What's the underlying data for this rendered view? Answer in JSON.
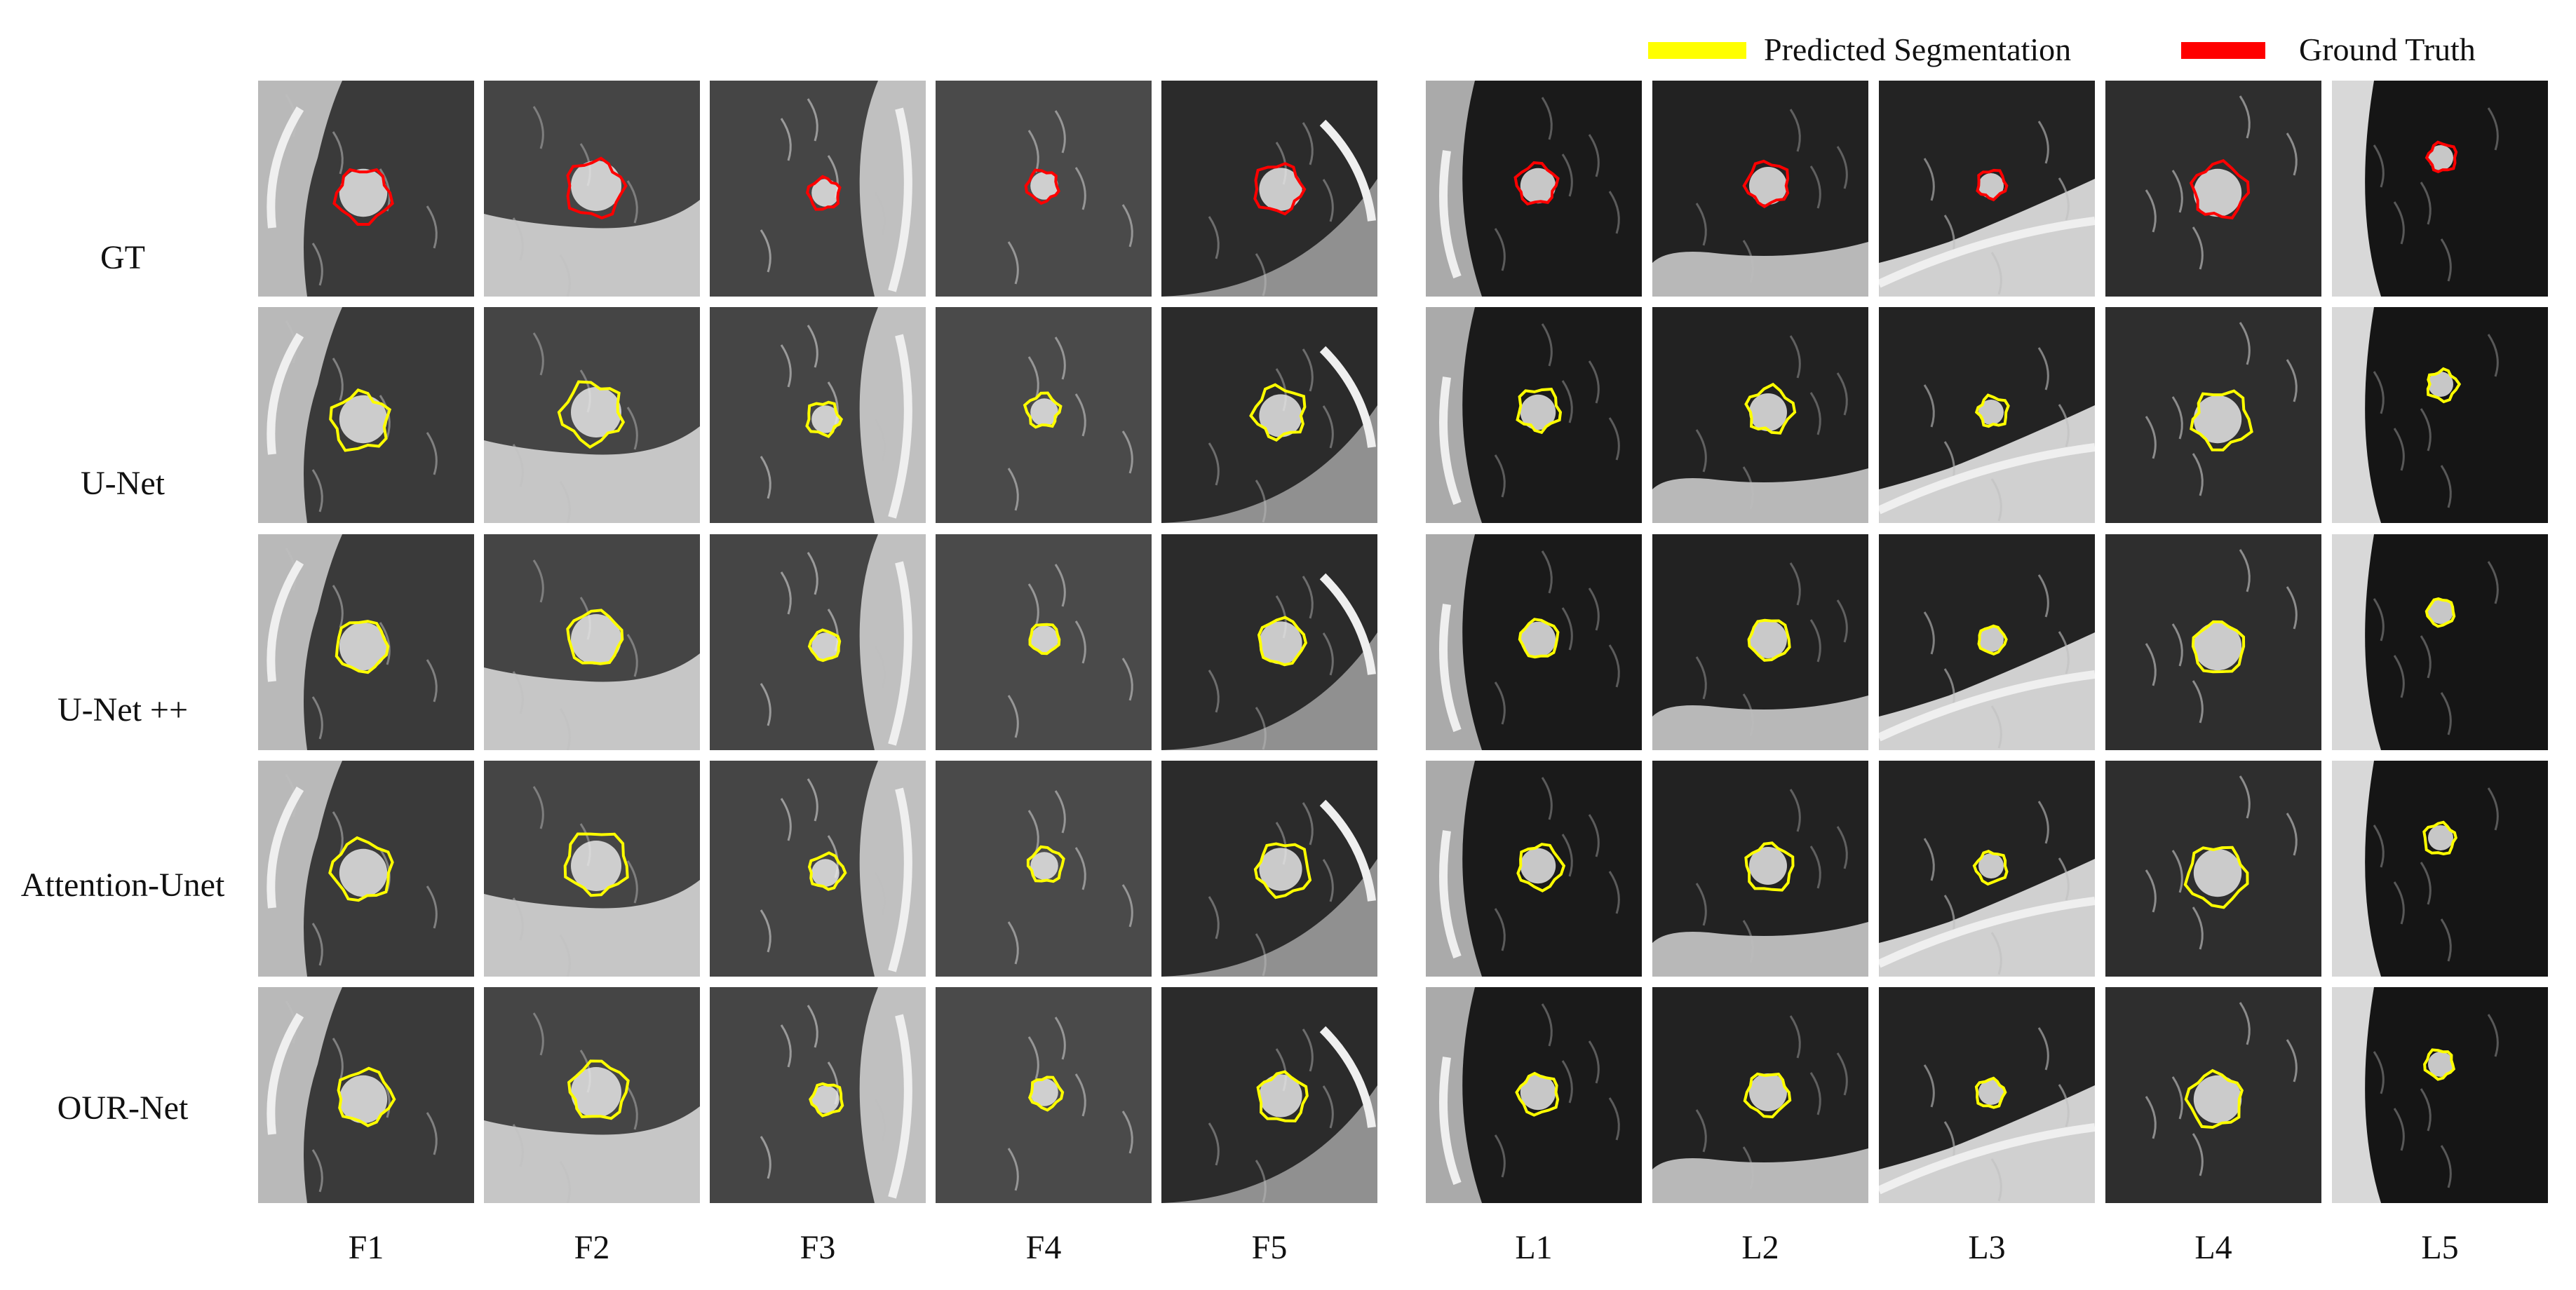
{
  "legend": {
    "predicted": {
      "label": "Predicted Segmentation",
      "color": "#ffff00"
    },
    "ground_truth": {
      "label": "Ground Truth",
      "color": "#ff0000"
    }
  },
  "rows": [
    {
      "id": "gt",
      "label": "GT",
      "contour_color": "#ff0000"
    },
    {
      "id": "unet",
      "label": "U-Net",
      "contour_color": "#ffff00"
    },
    {
      "id": "unetpp",
      "label": "U-Net ++",
      "contour_color": "#ffff00"
    },
    {
      "id": "attention",
      "label": "Attention-Unet",
      "contour_color": "#ffff00"
    },
    {
      "id": "ournet",
      "label": "OUR-Net",
      "contour_color": "#ffff00"
    }
  ],
  "columns": [
    {
      "id": "F1",
      "label": "F1"
    },
    {
      "id": "F2",
      "label": "F2"
    },
    {
      "id": "F3",
      "label": "F3"
    },
    {
      "id": "F4",
      "label": "F4"
    },
    {
      "id": "F5",
      "label": "F5"
    },
    {
      "id": "L1",
      "label": "L1"
    },
    {
      "id": "L2",
      "label": "L2"
    },
    {
      "id": "L3",
      "label": "L3"
    },
    {
      "id": "L4",
      "label": "L4"
    },
    {
      "id": "L5",
      "label": "L5"
    }
  ]
}
